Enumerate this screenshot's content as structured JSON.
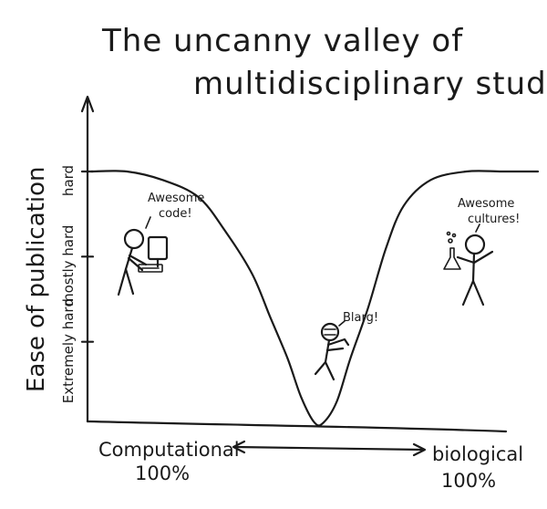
{
  "chart_data": {
    "type": "line",
    "title_line1": "The uncanny valley of",
    "title_line2": "multidisciplinary studies",
    "ylabel": "Ease of publication",
    "y_ticks": [
      {
        "label": "Extremely hard",
        "value": 1
      },
      {
        "label": "mostly hard",
        "value": 2
      },
      {
        "label": "hard",
        "value": 3
      }
    ],
    "x_endpoints": {
      "left_line1": "Computational",
      "left_line2": "100%",
      "right_line1": "biological",
      "right_line2": "100%"
    },
    "xlim": [
      0,
      100
    ],
    "ylim": [
      0,
      3.3
    ],
    "grid": false,
    "series": [
      {
        "x": [
          0,
          8,
          16,
          24,
          30,
          36,
          40,
          44,
          47,
          50,
          52,
          55,
          58,
          62,
          66,
          70,
          76,
          84,
          92,
          100
        ],
        "y": [
          3,
          3,
          2.9,
          2.7,
          2.3,
          1.8,
          1.3,
          0.8,
          0.35,
          0.05,
          0.05,
          0.3,
          0.8,
          1.4,
          2.1,
          2.6,
          2.9,
          3,
          3,
          3
        ]
      }
    ],
    "annotations": [
      {
        "text_line1": "Awesome",
        "text_line2": "code!",
        "figure": "stick-figure-at-computer"
      },
      {
        "text_line1": "Blarg!",
        "text_line2": "",
        "figure": "zombie-stick-figure"
      },
      {
        "text_line1": "Awesome",
        "text_line2": "cultures!",
        "figure": "stick-figure-with-flask"
      }
    ]
  }
}
